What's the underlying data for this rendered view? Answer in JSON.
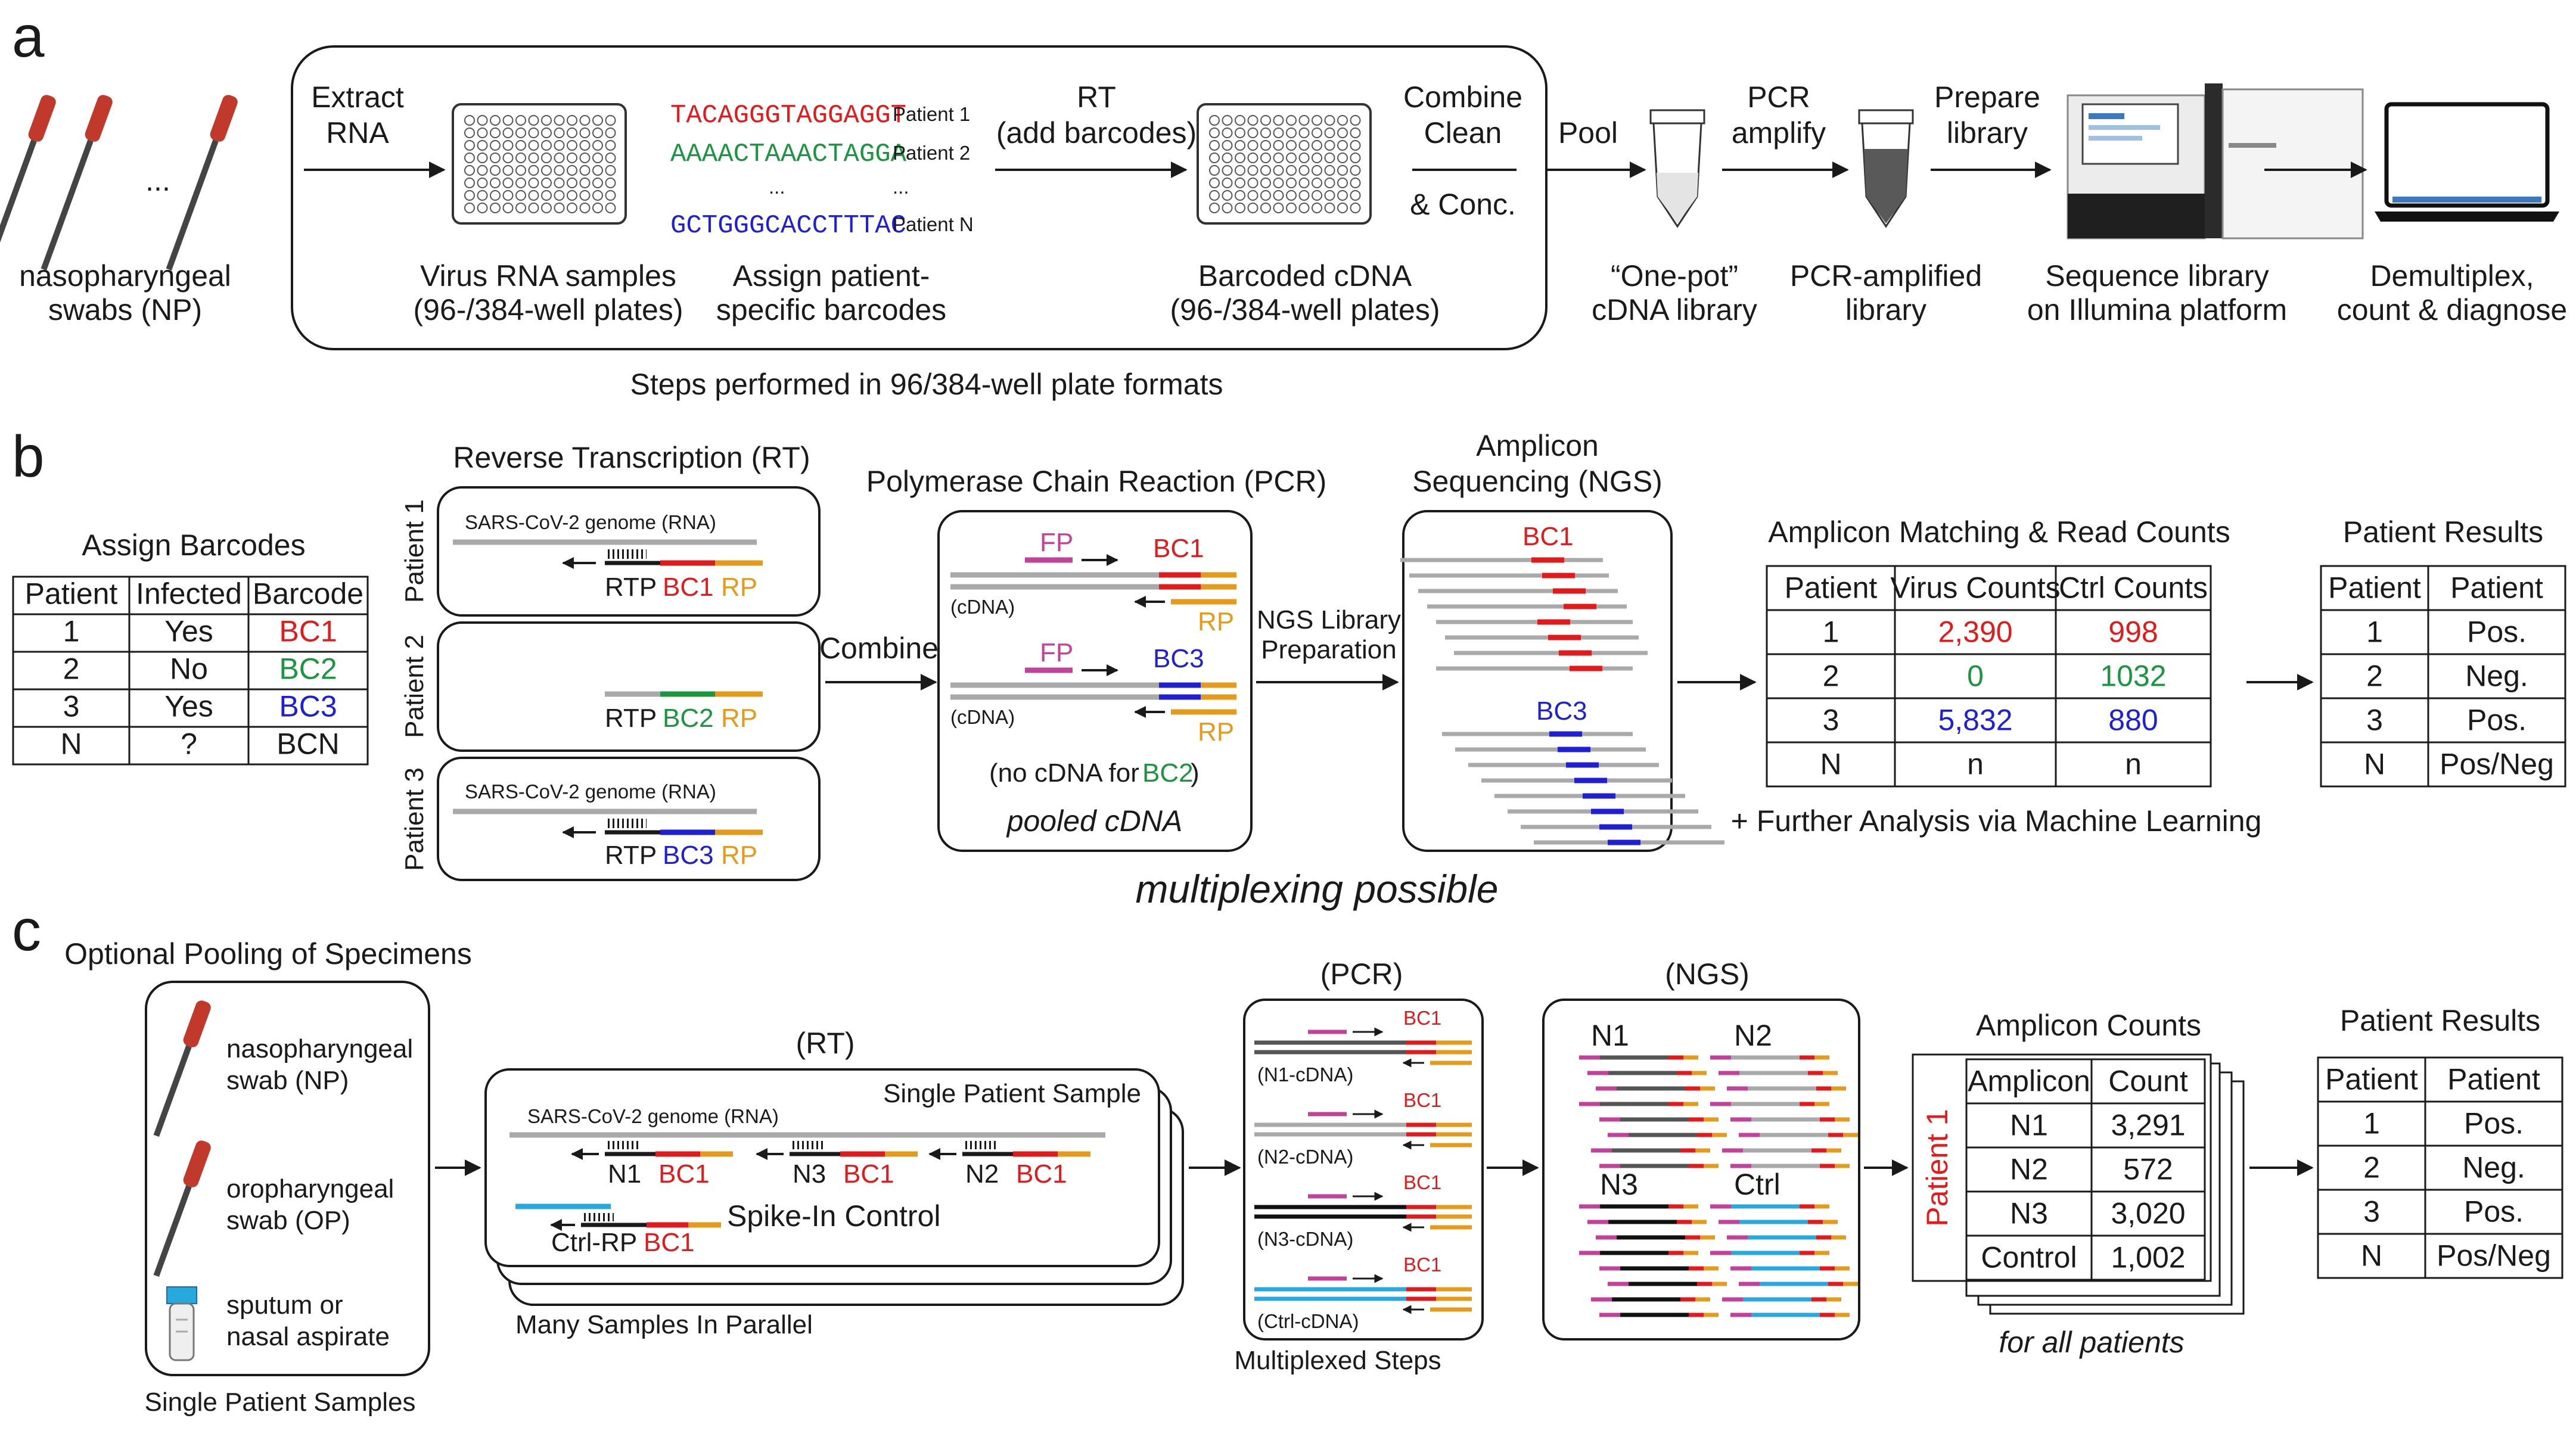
{
  "panels": {
    "a": "a",
    "b": "b",
    "c": "c"
  },
  "a": {
    "swabs_label": [
      "nasopharyngeal",
      "swabs (NP)"
    ],
    "dots": "...",
    "extract": [
      "Extract",
      "RNA"
    ],
    "virus_samples": [
      "Virus RNA samples",
      "(96-/384-well plates)"
    ],
    "barcodes": [
      {
        "seq": "TACAGGGTAGGAGGT",
        "patient": "Patient 1",
        "color": "#e31a1c"
      },
      {
        "seq": "AAAACTAAACTAGGA",
        "patient": "Patient 2",
        "color": "#1a9641"
      },
      {
        "seq": "GCTGGGCACCTTTAC",
        "patient": "Patient N",
        "color": "#1f1fd6"
      }
    ],
    "ellipsis": "...",
    "assign": [
      "Assign patient-",
      "specific barcodes"
    ],
    "rt": [
      "RT",
      "(add barcodes)"
    ],
    "barcoded": [
      "Barcoded cDNA",
      "(96-/384-well plates)"
    ],
    "combine": [
      "Combine",
      "Clean",
      "& Conc."
    ],
    "steps_caption": "Steps performed in 96/384-well plate formats",
    "pool": "Pool",
    "pcr_amplify": [
      "PCR",
      "amplify"
    ],
    "prepare": [
      "Prepare",
      "library"
    ],
    "onepot": [
      "“One-pot”",
      "cDNA library"
    ],
    "pcr_lib": [
      "PCR-amplified",
      "library"
    ],
    "seq_lib": [
      "Sequence library",
      "on Illumina platform"
    ],
    "demux": [
      "Demultiplex,",
      "count & diagnose"
    ]
  },
  "b": {
    "assign_title": "Assign Barcodes",
    "assign_headers": [
      "Patient",
      "Infected",
      "Barcode"
    ],
    "assign_rows": [
      {
        "patient": "1",
        "infected": "Yes",
        "barcode": "BC1",
        "color": "#e31a1c"
      },
      {
        "patient": "2",
        "infected": "No",
        "barcode": "BC2",
        "color": "#1a9641"
      },
      {
        "patient": "3",
        "infected": "Yes",
        "barcode": "BC3",
        "color": "#1f1fd6"
      },
      {
        "patient": "N",
        "infected": "?",
        "barcode": "BCN",
        "color": "#1a1a1a"
      }
    ],
    "rt_title": "Reverse Transcription (RT)",
    "patients": [
      "Patient 1",
      "Patient 2",
      "Patient 3"
    ],
    "genome": "SARS-CoV-2 genome (RNA)",
    "rtp": "RTP",
    "rp": "RP",
    "bc1": "BC1",
    "bc2": "BC2",
    "bc3": "BC3",
    "combine": "Combine",
    "pcr_title": "Polymerase Chain Reaction (PCR)",
    "fp": "FP",
    "cdna": "(cDNA)",
    "no_cdna": [
      "(no cDNA for ",
      "BC2",
      ")"
    ],
    "pooled": "pooled cDNA",
    "ngs_prep": [
      "NGS Library",
      "Preparation"
    ],
    "amplicon_title": [
      "Amplicon",
      "Sequencing (NGS)"
    ],
    "multiplexing": "multiplexing possible",
    "match_title": "Amplicon Matching & Read Counts",
    "match_headers": [
      "Patient",
      "Virus Counts",
      "Ctrl Counts"
    ],
    "match_rows": [
      {
        "patient": "1",
        "virus": "2,390",
        "ctrl": "998",
        "color": "#e31a1c"
      },
      {
        "patient": "2",
        "virus": "0",
        "ctrl": "1032",
        "color": "#1a9641"
      },
      {
        "patient": "3",
        "virus": "5,832",
        "ctrl": "880",
        "color": "#1f1fd6"
      },
      {
        "patient": "N",
        "virus": "n",
        "ctrl": "n",
        "color": "#1a1a1a"
      }
    ],
    "further": "+ Further Analysis via Machine Learning",
    "results_title": "Patient Results",
    "results_headers": [
      "Patient",
      "Patient"
    ],
    "results_rows": [
      [
        "1",
        "Pos."
      ],
      [
        "2",
        "Neg."
      ],
      [
        "3",
        "Pos."
      ],
      [
        "N",
        "Pos/Neg"
      ]
    ]
  },
  "c": {
    "pooling_title": "Optional Pooling of Specimens",
    "specimens": [
      [
        "nasopharyngeal",
        "swab (NP)"
      ],
      [
        "oropharyngeal",
        "swab (OP)"
      ],
      [
        "sputum or",
        "nasal aspirate"
      ]
    ],
    "single_samples": "Single Patient Samples",
    "rt_title": "(RT)",
    "single_patient": "Single Patient Sample",
    "genome": "SARS-CoV-2 genome (RNA)",
    "targets": [
      "N1",
      "N3",
      "N2"
    ],
    "bc1": "BC1",
    "spike": "Spike-In Control",
    "ctrl_rp": "Ctrl-RP",
    "many": "Many Samples In Parallel",
    "pcr_title": "(PCR)",
    "pcr_labels": [
      "(N1-cDNA)",
      "(N2-cDNA)",
      "(N3-cDNA)",
      "(Ctrl-cDNA)"
    ],
    "multiplexed": "Multiplexed Steps",
    "ngs_title": "(NGS)",
    "ngs_groups": [
      "N1",
      "N2",
      "N3",
      "Ctrl"
    ],
    "counts_title": "Amplicon Counts",
    "patient1": "Patient 1",
    "counts_headers": [
      "Amplicon",
      "Count"
    ],
    "counts_rows": [
      [
        "N1",
        "3,291"
      ],
      [
        "N2",
        "572"
      ],
      [
        "N3",
        "3,020"
      ],
      [
        "Control",
        "1,002"
      ]
    ],
    "all_patients": "for all patients",
    "results_title": "Patient Results",
    "results_headers": [
      "Patient",
      "Patient"
    ],
    "results_rows": [
      [
        "1",
        "Pos."
      ],
      [
        "2",
        "Neg."
      ],
      [
        "3",
        "Pos."
      ],
      [
        "N",
        "Pos/Neg"
      ]
    ]
  },
  "colors": {
    "red": "#e31a1c",
    "green": "#1a9641",
    "blue": "#1f1fd6",
    "orange": "#e59b19",
    "magenta": "#c2419a",
    "cyan": "#27a9df",
    "gray": "#a9a9a9"
  }
}
